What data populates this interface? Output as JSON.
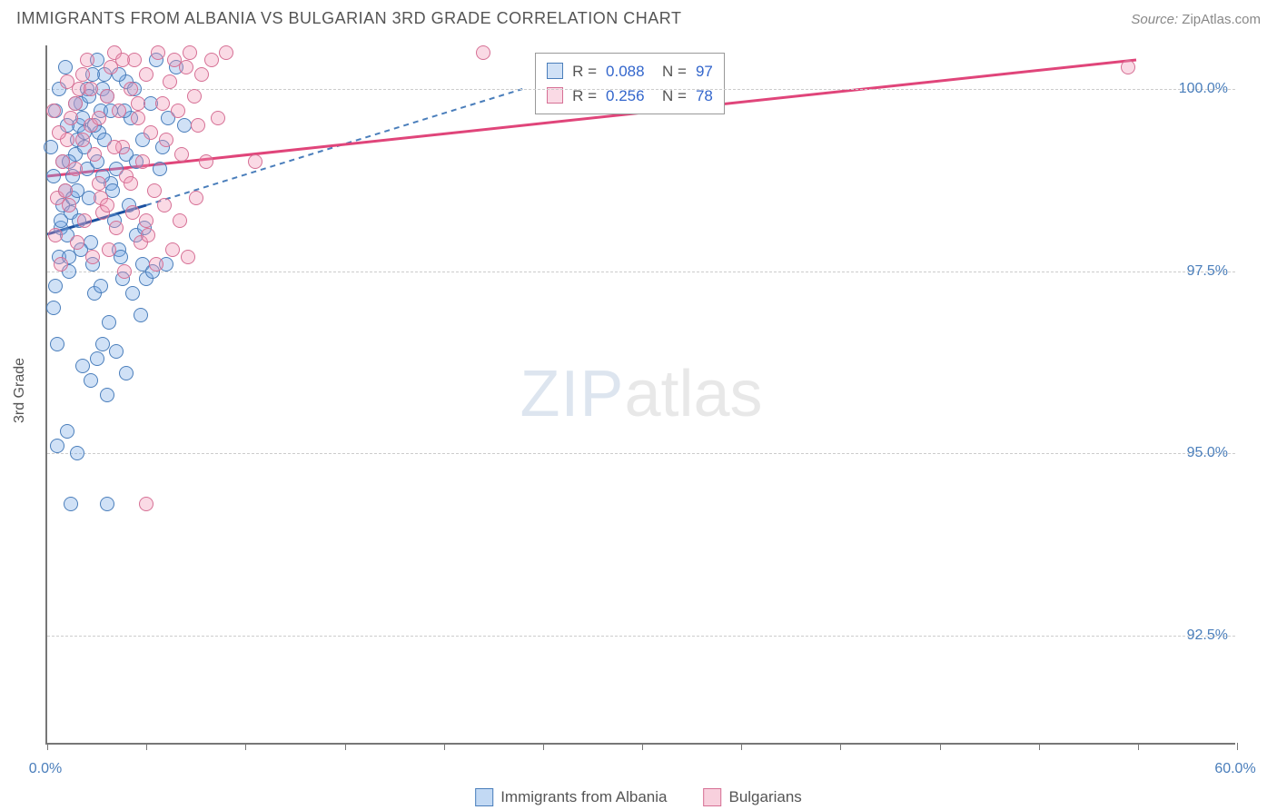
{
  "header": {
    "title": "IMMIGRANTS FROM ALBANIA VS BULGARIAN 3RD GRADE CORRELATION CHART",
    "source_label": "Source:",
    "source_value": "ZipAtlas.com"
  },
  "chart": {
    "type": "scatter",
    "ylabel": "3rd Grade",
    "xlim": [
      0.0,
      60.0
    ],
    "ylim": [
      91.0,
      100.6
    ],
    "yticks": [
      {
        "v": 92.5,
        "label": "92.5%"
      },
      {
        "v": 95.0,
        "label": "95.0%"
      },
      {
        "v": 97.5,
        "label": "97.5%"
      },
      {
        "v": 100.0,
        "label": "100.0%"
      }
    ],
    "xticks": [
      0,
      5,
      10,
      15,
      20,
      25,
      30,
      35,
      40,
      45,
      50,
      55,
      60
    ],
    "xtick_labels": {
      "0": "0.0%",
      "60": "60.0%"
    },
    "grid_color": "#cccccc",
    "axis_color": "#777777",
    "background_color": "#ffffff",
    "marker_radius": 8,
    "marker_stroke_width": 1.2,
    "series": [
      {
        "name": "Immigrants from Albania",
        "fill": "rgba(120,170,230,0.35)",
        "stroke": "#4a7ebb",
        "trend_color": "#1a4fa0",
        "trend_dash_color": "#4a7ebb",
        "trend": {
          "x1": 0.0,
          "y1": 98.0,
          "x2": 5.0,
          "y2": 98.4,
          "dash_x2": 24.0,
          "dash_y2": 100.0
        },
        "stats": {
          "R": "0.088",
          "N": "97"
        },
        "points": [
          [
            0.3,
            97.0
          ],
          [
            0.4,
            97.3
          ],
          [
            0.5,
            96.5
          ],
          [
            0.6,
            97.7
          ],
          [
            0.7,
            98.1
          ],
          [
            0.8,
            98.4
          ],
          [
            0.9,
            98.6
          ],
          [
            1.0,
            98.0
          ],
          [
            1.1,
            97.5
          ],
          [
            1.2,
            98.3
          ],
          [
            1.3,
            98.8
          ],
          [
            1.4,
            99.1
          ],
          [
            1.5,
            99.3
          ],
          [
            1.6,
            99.5
          ],
          [
            1.7,
            99.8
          ],
          [
            1.8,
            99.6
          ],
          [
            1.9,
            99.2
          ],
          [
            2.0,
            98.9
          ],
          [
            2.1,
            98.5
          ],
          [
            2.2,
            97.9
          ],
          [
            2.3,
            97.6
          ],
          [
            2.4,
            97.2
          ],
          [
            2.5,
            99.0
          ],
          [
            2.6,
            99.4
          ],
          [
            2.7,
            99.7
          ],
          [
            2.8,
            100.0
          ],
          [
            2.9,
            100.2
          ],
          [
            3.0,
            99.9
          ],
          [
            3.2,
            98.7
          ],
          [
            3.4,
            98.2
          ],
          [
            3.6,
            97.8
          ],
          [
            3.8,
            97.4
          ],
          [
            4.0,
            100.1
          ],
          [
            4.2,
            99.6
          ],
          [
            4.5,
            98.0
          ],
          [
            4.8,
            97.6
          ],
          [
            5.0,
            97.4
          ],
          [
            0.5,
            95.1
          ],
          [
            1.0,
            95.3
          ],
          [
            1.8,
            96.2
          ],
          [
            2.2,
            96.0
          ],
          [
            2.5,
            96.3
          ],
          [
            2.8,
            96.5
          ],
          [
            3.0,
            95.8
          ],
          [
            3.5,
            96.4
          ],
          [
            4.0,
            96.1
          ],
          [
            1.2,
            94.3
          ],
          [
            1.5,
            95.0
          ],
          [
            3.0,
            94.3
          ],
          [
            0.8,
            99.0
          ],
          [
            1.0,
            99.5
          ],
          [
            1.4,
            99.8
          ],
          [
            1.6,
            98.2
          ],
          [
            2.0,
            100.0
          ],
          [
            2.4,
            99.5
          ],
          [
            2.8,
            98.8
          ],
          [
            3.2,
            99.7
          ],
          [
            3.6,
            100.2
          ],
          [
            4.0,
            99.1
          ],
          [
            4.4,
            100.0
          ],
          [
            4.8,
            99.3
          ],
          [
            5.2,
            99.8
          ],
          [
            5.5,
            100.4
          ],
          [
            5.8,
            99.2
          ],
          [
            6.0,
            97.6
          ],
          [
            0.2,
            99.2
          ],
          [
            0.4,
            99.7
          ],
          [
            0.6,
            100.0
          ],
          [
            0.9,
            100.3
          ],
          [
            1.1,
            99.0
          ],
          [
            1.3,
            98.5
          ],
          [
            1.7,
            97.8
          ],
          [
            2.1,
            99.9
          ],
          [
            2.5,
            100.4
          ],
          [
            2.9,
            99.3
          ],
          [
            3.3,
            98.6
          ],
          [
            3.7,
            97.7
          ],
          [
            4.1,
            98.4
          ],
          [
            4.5,
            99.0
          ],
          [
            4.9,
            98.1
          ],
          [
            5.3,
            97.5
          ],
          [
            5.7,
            98.9
          ],
          [
            6.1,
            99.6
          ],
          [
            6.5,
            100.3
          ],
          [
            6.9,
            99.5
          ],
          [
            0.3,
            98.8
          ],
          [
            0.7,
            98.2
          ],
          [
            1.1,
            97.7
          ],
          [
            1.5,
            98.6
          ],
          [
            1.9,
            99.4
          ],
          [
            2.3,
            100.2
          ],
          [
            2.7,
            97.3
          ],
          [
            3.1,
            96.8
          ],
          [
            3.5,
            98.9
          ],
          [
            3.9,
            99.7
          ],
          [
            4.3,
            97.2
          ],
          [
            4.7,
            96.9
          ]
        ]
      },
      {
        "name": "Bulgarians",
        "fill": "rgba(240,150,180,0.35)",
        "stroke": "#d67095",
        "trend_color": "#e0457a",
        "trend_dash_color": "#e88aa8",
        "trend": {
          "x1": 0.0,
          "y1": 98.8,
          "x2": 55.0,
          "y2": 100.4,
          "dash_x2": 55.0,
          "dash_y2": 100.4
        },
        "stats": {
          "R": "0.256",
          "N": "78"
        },
        "points": [
          [
            0.5,
            98.5
          ],
          [
            0.8,
            99.0
          ],
          [
            1.0,
            99.3
          ],
          [
            1.2,
            99.6
          ],
          [
            1.4,
            99.8
          ],
          [
            1.6,
            100.0
          ],
          [
            1.8,
            100.2
          ],
          [
            2.0,
            100.4
          ],
          [
            2.2,
            99.5
          ],
          [
            2.4,
            99.1
          ],
          [
            2.6,
            98.7
          ],
          [
            2.8,
            98.3
          ],
          [
            3.0,
            99.9
          ],
          [
            3.2,
            100.3
          ],
          [
            3.4,
            100.5
          ],
          [
            3.6,
            99.7
          ],
          [
            3.8,
            99.2
          ],
          [
            4.0,
            98.8
          ],
          [
            4.2,
            100.0
          ],
          [
            4.4,
            100.4
          ],
          [
            4.6,
            99.6
          ],
          [
            4.8,
            99.0
          ],
          [
            5.0,
            100.2
          ],
          [
            5.2,
            99.4
          ],
          [
            5.4,
            98.6
          ],
          [
            5.6,
            100.5
          ],
          [
            5.8,
            99.8
          ],
          [
            6.0,
            99.3
          ],
          [
            6.2,
            100.1
          ],
          [
            6.4,
            100.4
          ],
          [
            6.6,
            99.7
          ],
          [
            6.8,
            99.1
          ],
          [
            7.0,
            100.3
          ],
          [
            7.2,
            100.5
          ],
          [
            7.4,
            99.9
          ],
          [
            7.6,
            99.5
          ],
          [
            7.8,
            100.2
          ],
          [
            8.0,
            99.0
          ],
          [
            8.3,
            100.4
          ],
          [
            8.6,
            99.6
          ],
          [
            9.0,
            100.5
          ],
          [
            22.0,
            100.5
          ],
          [
            54.5,
            100.3
          ],
          [
            0.4,
            98.0
          ],
          [
            0.7,
            97.6
          ],
          [
            1.1,
            98.4
          ],
          [
            1.5,
            97.9
          ],
          [
            1.9,
            98.2
          ],
          [
            2.3,
            97.7
          ],
          [
            2.7,
            98.5
          ],
          [
            3.1,
            97.8
          ],
          [
            3.5,
            98.1
          ],
          [
            3.9,
            97.5
          ],
          [
            4.3,
            98.3
          ],
          [
            4.7,
            97.9
          ],
          [
            5.1,
            98.0
          ],
          [
            5.5,
            97.6
          ],
          [
            5.9,
            98.4
          ],
          [
            6.3,
            97.8
          ],
          [
            6.7,
            98.2
          ],
          [
            7.1,
            97.7
          ],
          [
            7.5,
            98.5
          ],
          [
            0.6,
            99.4
          ],
          [
            1.0,
            100.1
          ],
          [
            1.4,
            98.9
          ],
          [
            1.8,
            99.3
          ],
          [
            2.2,
            100.0
          ],
          [
            2.6,
            99.6
          ],
          [
            3.0,
            98.4
          ],
          [
            3.4,
            99.2
          ],
          [
            3.8,
            100.4
          ],
          [
            4.2,
            98.7
          ],
          [
            4.6,
            99.8
          ],
          [
            5.0,
            98.2
          ],
          [
            10.5,
            99.0
          ],
          [
            5.0,
            94.3
          ],
          [
            0.3,
            99.7
          ],
          [
            0.9,
            98.6
          ]
        ]
      }
    ],
    "stats_box": {
      "left_pct": 41,
      "top_pct": 1
    },
    "watermark": {
      "zip": "ZIP",
      "atlas": "atlas"
    },
    "legend": [
      {
        "swatch_fill": "rgba(120,170,230,0.45)",
        "swatch_stroke": "#4a7ebb",
        "label": "Immigrants from Albania"
      },
      {
        "swatch_fill": "rgba(240,150,180,0.45)",
        "swatch_stroke": "#d67095",
        "label": "Bulgarians"
      }
    ]
  }
}
